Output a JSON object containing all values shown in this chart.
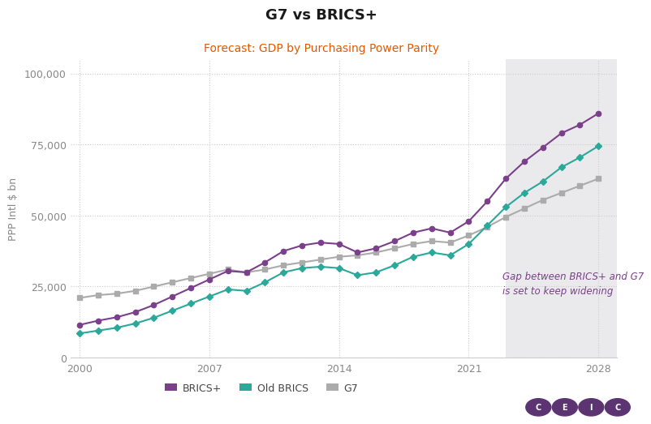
{
  "title": "G7 vs BRICS+",
  "subtitle": "Forecast: GDP by Purchasing Power Parity",
  "ylabel": "PPP Intl $ bn",
  "forecast_start": 2023,
  "annotation": "Gap between BRICS+ and G7\nis set to keep widening",
  "annotation_color": "#7B3F8B",
  "background_color": "#ffffff",
  "forecast_bg_color": "#EAEAED",
  "years": [
    2000,
    2001,
    2002,
    2003,
    2004,
    2005,
    2006,
    2007,
    2008,
    2009,
    2010,
    2011,
    2012,
    2013,
    2014,
    2015,
    2016,
    2017,
    2018,
    2019,
    2020,
    2021,
    2022,
    2023,
    2024,
    2025,
    2026,
    2027,
    2028
  ],
  "brics_plus": [
    11500,
    13000,
    14200,
    16000,
    18500,
    21500,
    24500,
    27500,
    30500,
    30000,
    33500,
    37500,
    39500,
    40500,
    40000,
    37000,
    38500,
    41000,
    44000,
    45500,
    44000,
    48000,
    55000,
    63000,
    69000,
    74000,
    79000,
    82000,
    86000
  ],
  "old_brics": [
    8500,
    9500,
    10500,
    12000,
    14000,
    16500,
    19000,
    21500,
    24000,
    23500,
    26500,
    30000,
    31500,
    32000,
    31500,
    29000,
    30000,
    32500,
    35500,
    37000,
    36000,
    40000,
    46500,
    53000,
    58000,
    62000,
    67000,
    70500,
    74500
  ],
  "g7": [
    21000,
    22000,
    22500,
    23500,
    25000,
    26500,
    28000,
    29500,
    31000,
    30000,
    31000,
    32500,
    33500,
    34500,
    35500,
    36000,
    37000,
    38500,
    40000,
    41000,
    40500,
    43000,
    46000,
    49500,
    52500,
    55500,
    58000,
    60500,
    63000
  ],
  "brics_plus_color": "#7B3F8B",
  "old_brics_color": "#2AA89A",
  "g7_color": "#ABABAB",
  "grid_color": "#CCCCCC",
  "title_color": "#1a1a1a",
  "subtitle_color": "#E05A00",
  "ylabel_color": "#888888",
  "tick_color": "#888888",
  "yticks": [
    0,
    25000,
    50000,
    75000,
    100000
  ],
  "xticks": [
    2000,
    2007,
    2014,
    2021,
    2028
  ],
  "ylim": [
    0,
    105000
  ],
  "xlim": [
    1999.5,
    2029
  ]
}
